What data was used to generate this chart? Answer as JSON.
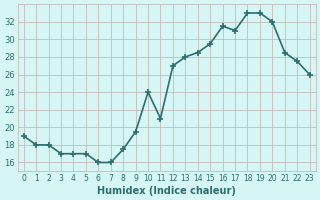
{
  "x": [
    0,
    1,
    2,
    3,
    4,
    5,
    6,
    7,
    8,
    9,
    10,
    11,
    12,
    13,
    14,
    15,
    16,
    17,
    18,
    19,
    20,
    21,
    22,
    23
  ],
  "y": [
    19,
    18,
    18,
    17,
    17,
    17,
    16,
    16,
    17.5,
    19.5,
    24,
    21,
    27,
    28,
    28.5,
    29.5,
    31.5,
    31,
    33,
    33,
    32,
    28.5,
    27.5,
    26
  ],
  "xlabel": "Humidex (Indice chaleur)",
  "xlim": [
    -0.5,
    23.5
  ],
  "ylim": [
    15,
    34
  ],
  "yticks": [
    16,
    18,
    20,
    22,
    24,
    26,
    28,
    30,
    32
  ],
  "xticks": [
    0,
    1,
    2,
    3,
    4,
    5,
    6,
    7,
    8,
    9,
    10,
    11,
    12,
    13,
    14,
    15,
    16,
    17,
    18,
    19,
    20,
    21,
    22,
    23
  ],
  "line_color": "#2d6e6e",
  "marker": "+",
  "bg_color": "#d6f5f5",
  "grid_color": "#c0b0b0",
  "xlabel_color": "#2d6e6e",
  "tick_color": "#2d6e6e",
  "marker_size": 5,
  "line_width": 1.2,
  "markeredgewidth": 1.2
}
